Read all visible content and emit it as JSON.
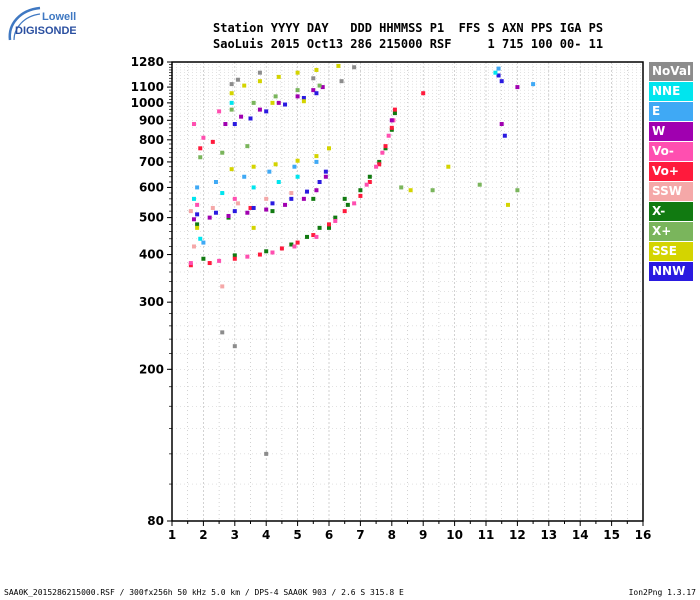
{
  "logo": {
    "line1": "Lowell",
    "line2": "DIGISONDE"
  },
  "header": {
    "line1": "Station YYYY DAY   DDD HHMMSS P1  FFS S AXN PPS IGA PS",
    "line2": "SaoLuis 2015 Oct13 286 215000 RSF     1 715 100 00- 11"
  },
  "legend": [
    {
      "label": "NoVal",
      "color": "#8c8c8c"
    },
    {
      "label": "NNE",
      "color": "#00e5ee"
    },
    {
      "label": "E",
      "color": "#3fa9f5"
    },
    {
      "label": "W",
      "color": "#a000b0"
    },
    {
      "label": "Vo-",
      "color": "#ff4fb0"
    },
    {
      "label": "Vo+",
      "color": "#ff1a3c"
    },
    {
      "label": "SSW",
      "color": "#f5a8a8"
    },
    {
      "label": "X-",
      "color": "#117a11"
    },
    {
      "label": "X+",
      "color": "#7ab55c"
    },
    {
      "label": "SSE",
      "color": "#d4d400"
    },
    {
      "label": "NNW",
      "color": "#2a1ae0"
    }
  ],
  "footer": {
    "left": "SAA0K_2015286215000.RSF / 300fx256h 50 kHz 5.0 km / DPS-4 SAA0K 903 / 2.6 S 315.8 E",
    "right": "Ion2Png 1.3.17"
  },
  "chart_data": {
    "type": "scatter",
    "title": "",
    "xlabel": "",
    "ylabel": "",
    "xlim": [
      1,
      16
    ],
    "ylim": [
      80,
      1280
    ],
    "yscale": "log",
    "grid": true,
    "legend_position": "right",
    "x_ticks": [
      1,
      2,
      3,
      4,
      5,
      6,
      7,
      8,
      9,
      10,
      11,
      12,
      13,
      14,
      15,
      16
    ],
    "y_ticks": [
      80,
      200,
      300,
      400,
      500,
      600,
      700,
      800,
      900,
      1000,
      1100,
      1280
    ],
    "series": [
      {
        "name": "X-",
        "color": "#117a11",
        "points": [
          [
            2.0,
            390
          ],
          [
            3.0,
            398
          ],
          [
            4.0,
            408
          ],
          [
            4.8,
            425
          ],
          [
            5.3,
            445
          ],
          [
            5.7,
            470
          ],
          [
            6.2,
            500
          ],
          [
            6.6,
            540
          ],
          [
            7.0,
            590
          ],
          [
            7.3,
            640
          ],
          [
            7.6,
            700
          ],
          [
            7.8,
            760
          ],
          [
            8.0,
            850
          ],
          [
            8.1,
            940
          ],
          [
            1.8,
            480
          ],
          [
            2.8,
            500
          ],
          [
            4.2,
            520
          ],
          [
            5.5,
            560
          ],
          [
            6.0,
            470
          ],
          [
            6.5,
            560
          ]
        ]
      },
      {
        "name": "Vo+",
        "color": "#ff1a3c",
        "points": [
          [
            1.6,
            375
          ],
          [
            2.2,
            380
          ],
          [
            3.0,
            390
          ],
          [
            3.8,
            400
          ],
          [
            4.5,
            415
          ],
          [
            5.0,
            430
          ],
          [
            5.5,
            450
          ],
          [
            6.0,
            480
          ],
          [
            6.5,
            520
          ],
          [
            7.0,
            570
          ],
          [
            7.3,
            620
          ],
          [
            7.6,
            690
          ],
          [
            7.8,
            770
          ],
          [
            8.0,
            860
          ],
          [
            8.1,
            960
          ],
          [
            1.9,
            760
          ],
          [
            2.3,
            790
          ],
          [
            3.5,
            530
          ],
          [
            9.0,
            1060
          ]
        ]
      },
      {
        "name": "Vo-",
        "color": "#ff4fb0",
        "points": [
          [
            1.6,
            380
          ],
          [
            2.5,
            385
          ],
          [
            3.4,
            395
          ],
          [
            4.2,
            405
          ],
          [
            4.9,
            420
          ],
          [
            5.6,
            445
          ],
          [
            6.2,
            490
          ],
          [
            6.8,
            545
          ],
          [
            7.2,
            610
          ],
          [
            7.5,
            680
          ],
          [
            7.7,
            740
          ],
          [
            7.9,
            820
          ],
          [
            8.05,
            900
          ],
          [
            1.7,
            880
          ],
          [
            2.0,
            810
          ],
          [
            2.5,
            950
          ],
          [
            1.8,
            540
          ],
          [
            3.0,
            560
          ]
        ]
      },
      {
        "name": "W",
        "color": "#a000b0",
        "points": [
          [
            1.7,
            495
          ],
          [
            2.2,
            500
          ],
          [
            2.8,
            505
          ],
          [
            3.4,
            515
          ],
          [
            4.0,
            525
          ],
          [
            4.6,
            540
          ],
          [
            5.2,
            560
          ],
          [
            5.6,
            590
          ],
          [
            5.9,
            640
          ],
          [
            2.7,
            880
          ],
          [
            3.2,
            920
          ],
          [
            3.8,
            960
          ],
          [
            4.4,
            1000
          ],
          [
            5.0,
            1040
          ],
          [
            5.5,
            1080
          ],
          [
            5.8,
            1100
          ],
          [
            8.0,
            900
          ],
          [
            11.5,
            880
          ],
          [
            12.0,
            1100
          ]
        ]
      },
      {
        "name": "NNW",
        "color": "#2a1ae0",
        "points": [
          [
            1.8,
            510
          ],
          [
            2.4,
            515
          ],
          [
            3.0,
            520
          ],
          [
            3.6,
            530
          ],
          [
            4.2,
            545
          ],
          [
            4.8,
            560
          ],
          [
            5.3,
            585
          ],
          [
            5.7,
            620
          ],
          [
            5.9,
            660
          ],
          [
            3.0,
            880
          ],
          [
            3.5,
            910
          ],
          [
            4.0,
            950
          ],
          [
            4.6,
            990
          ],
          [
            5.2,
            1030
          ],
          [
            5.6,
            1060
          ],
          [
            11.4,
            1180
          ],
          [
            11.5,
            1140
          ],
          [
            11.6,
            820
          ]
        ]
      },
      {
        "name": "NNE",
        "color": "#00e5ee",
        "points": [
          [
            1.7,
            560
          ],
          [
            2.6,
            580
          ],
          [
            3.6,
            600
          ],
          [
            4.4,
            620
          ],
          [
            5.0,
            640
          ],
          [
            1.9,
            440
          ],
          [
            11.3,
            1200
          ],
          [
            2.9,
            1000
          ]
        ]
      },
      {
        "name": "E",
        "color": "#3fa9f5",
        "points": [
          [
            1.8,
            600
          ],
          [
            2.4,
            620
          ],
          [
            3.3,
            640
          ],
          [
            4.1,
            660
          ],
          [
            4.9,
            680
          ],
          [
            5.6,
            700
          ],
          [
            2.0,
            430
          ],
          [
            11.4,
            1230
          ],
          [
            12.5,
            1120
          ]
        ]
      },
      {
        "name": "SSW",
        "color": "#f5a8a8",
        "points": [
          [
            1.6,
            520
          ],
          [
            2.3,
            530
          ],
          [
            3.1,
            545
          ],
          [
            4.0,
            560
          ],
          [
            4.8,
            580
          ],
          [
            2.6,
            330
          ],
          [
            1.7,
            420
          ]
        ]
      },
      {
        "name": "X+",
        "color": "#7ab55c",
        "points": [
          [
            1.9,
            720
          ],
          [
            2.6,
            740
          ],
          [
            3.4,
            770
          ],
          [
            2.9,
            960
          ],
          [
            3.6,
            1000
          ],
          [
            4.3,
            1040
          ],
          [
            5.0,
            1080
          ],
          [
            5.7,
            1110
          ],
          [
            8.3,
            600
          ],
          [
            9.3,
            590
          ],
          [
            10.8,
            610
          ],
          [
            12.0,
            590
          ]
        ]
      },
      {
        "name": "SSE",
        "color": "#d4d400",
        "points": [
          [
            2.9,
            670
          ],
          [
            3.6,
            680
          ],
          [
            4.3,
            690
          ],
          [
            5.0,
            705
          ],
          [
            5.6,
            725
          ],
          [
            6.0,
            760
          ],
          [
            3.3,
            1110
          ],
          [
            3.8,
            1140
          ],
          [
            4.4,
            1170
          ],
          [
            5.0,
            1200
          ],
          [
            5.6,
            1220
          ],
          [
            6.3,
            1250
          ],
          [
            2.9,
            1060
          ],
          [
            4.2,
            1000
          ],
          [
            5.2,
            1010
          ],
          [
            8.6,
            590
          ],
          [
            9.8,
            680
          ],
          [
            11.7,
            540
          ],
          [
            1.8,
            470
          ],
          [
            3.6,
            470
          ]
        ]
      },
      {
        "name": "NoVal",
        "color": "#8c8c8c",
        "points": [
          [
            2.9,
            1120
          ],
          [
            3.1,
            1150
          ],
          [
            3.8,
            1200
          ],
          [
            5.5,
            1160
          ],
          [
            6.4,
            1140
          ],
          [
            6.8,
            1240
          ],
          [
            2.6,
            250
          ],
          [
            3.0,
            230
          ],
          [
            4.0,
            120
          ]
        ]
      }
    ]
  }
}
